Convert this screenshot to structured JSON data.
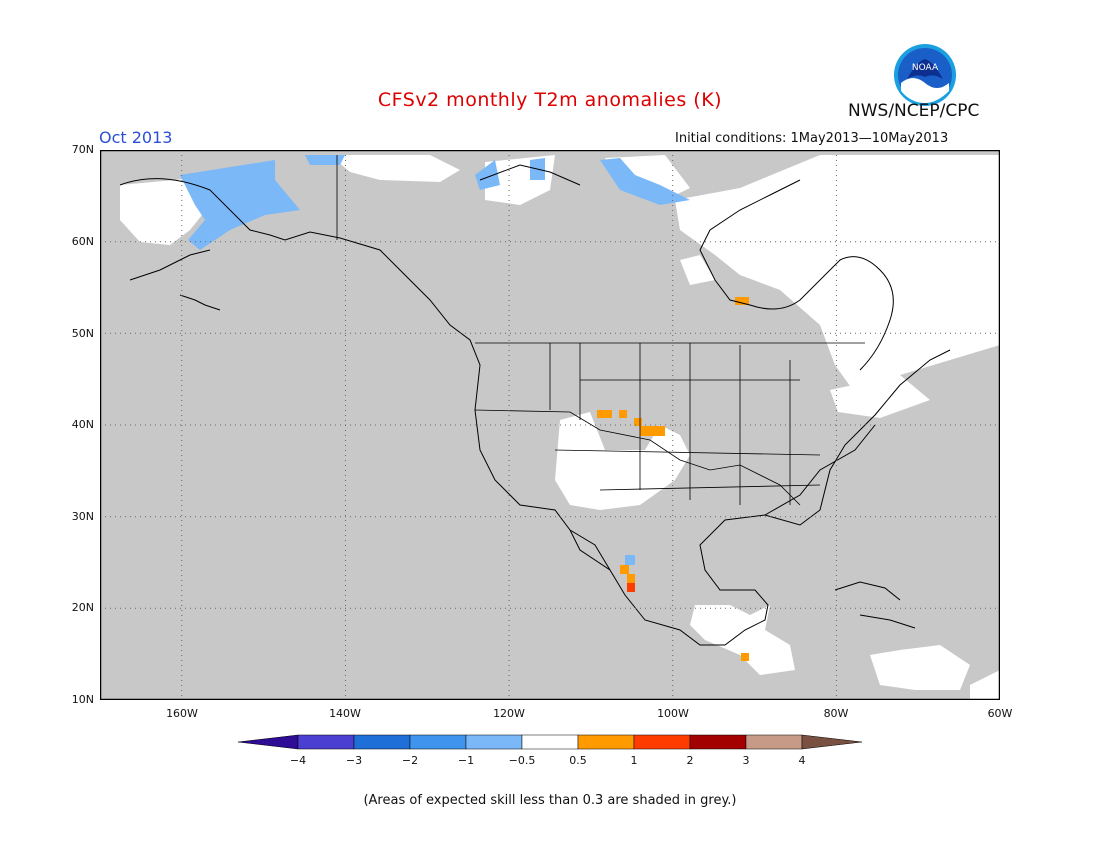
{
  "title": "CFSv2 monthly T2m anomalies (K)",
  "month": "Oct 2013",
  "initial_conditions": "Initial conditions: 1May2013—10May2013",
  "agency": "NWS/NCEP/CPC",
  "logo_text": "NOAA",
  "lat_labels": [
    "70N",
    "60N",
    "50N",
    "40N",
    "30N",
    "20N",
    "10N"
  ],
  "lon_labels": [
    "160W",
    "140W",
    "120W",
    "100W",
    "80W",
    "60W"
  ],
  "colorbar": {
    "labels": [
      "−4",
      "−3",
      "−2",
      "−1",
      "−0.5",
      "0.5",
      "1",
      "2",
      "3",
      "4"
    ],
    "colors": [
      "#2e0c96",
      "#4a3fd0",
      "#1f6fd8",
      "#3f95ee",
      "#7ab8f8",
      "#ffffff",
      "#ff9a00",
      "#ff3c00",
      "#a30000",
      "#c79a88",
      "#7a5040"
    ]
  },
  "colors": {
    "grey_skill": "#c8c8c8",
    "title": "#dd0000",
    "month": "#2a4fd6"
  },
  "note": "(Areas of expected skill less than 0.3 are shaded in grey.)"
}
